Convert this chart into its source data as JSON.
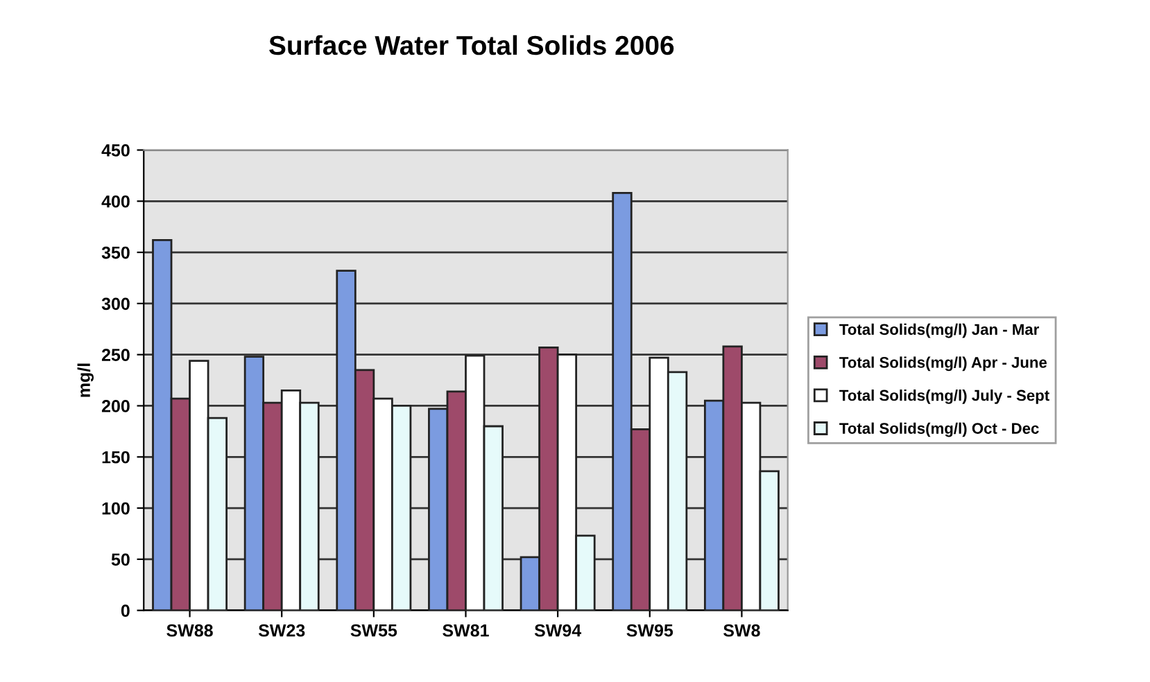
{
  "chart_data": {
    "type": "bar",
    "title": "Surface Water Total Solids 2006",
    "ylabel": "mg/l",
    "categories": [
      "SW88",
      "SW23",
      "SW55",
      "SW81",
      "SW94",
      "SW95",
      "SW8"
    ],
    "series": [
      {
        "name": "Total Solids(mg/l) Jan - Mar",
        "color": "#7b9be0",
        "values": [
          362,
          248,
          332,
          197,
          52,
          408,
          205
        ]
      },
      {
        "name": "Total Solids(mg/l) Apr - June",
        "color": "#9e4a6a",
        "values": [
          207,
          203,
          235,
          214,
          257,
          177,
          258
        ]
      },
      {
        "name": "Total Solids(mg/l) July - Sept",
        "color": "#ffffff",
        "values": [
          244,
          215,
          207,
          249,
          250,
          247,
          203
        ]
      },
      {
        "name": "Total Solids(mg/l) Oct - Dec",
        "color": "#e6fafa",
        "values": [
          188,
          203,
          200,
          180,
          73,
          233,
          136
        ]
      }
    ],
    "ylim": [
      0,
      450
    ],
    "yticks": [
      0,
      50,
      100,
      150,
      200,
      250,
      300,
      350,
      400,
      450
    ],
    "grid": "y",
    "legend": "right"
  }
}
